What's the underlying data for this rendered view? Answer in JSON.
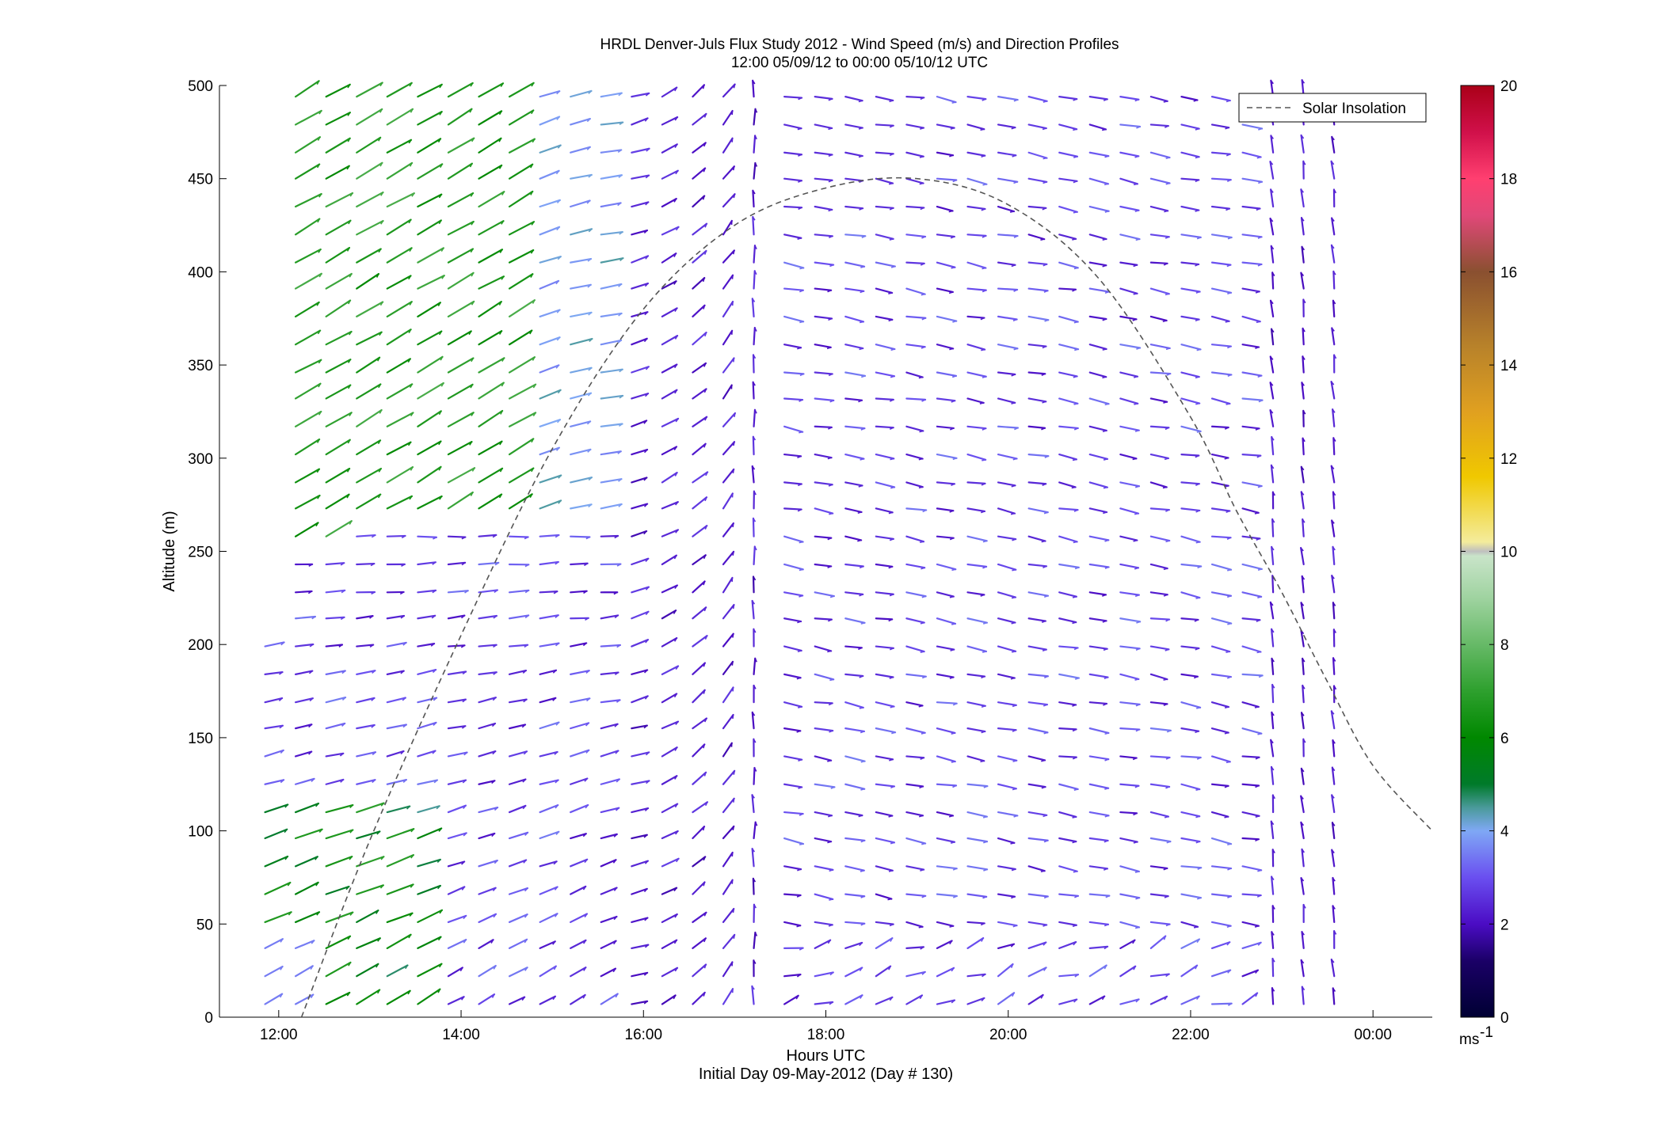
{
  "chart_data": {
    "type": "wind-barb-profile",
    "title": "HRDL Denver-Juls Flux Study 2012 - Wind Speed (m/s) and Direction Profiles",
    "subtitle": "12:00 05/09/12 to 00:00 05/10/12  UTC",
    "xlabel": "Hours UTC",
    "xlabel2": "Initial Day 09-May-2012 (Day # 130)",
    "ylabel": "Altitude (m)",
    "xlim": [
      11.35,
      24.65
    ],
    "ylim": [
      0,
      500
    ],
    "x_ticks": [
      12,
      14,
      16,
      18,
      20,
      22,
      24
    ],
    "x_tick_labels": [
      "12:00",
      "14:00",
      "16:00",
      "18:00",
      "20:00",
      "22:00",
      "00:00"
    ],
    "y_ticks": [
      0,
      50,
      100,
      150,
      200,
      250,
      300,
      350,
      400,
      450,
      500
    ],
    "colorbar": {
      "range": [
        0,
        20
      ],
      "ticks": [
        0,
        2,
        4,
        6,
        8,
        10,
        12,
        14,
        16,
        18,
        20
      ],
      "unit_label": "ms",
      "unit_superscript": "-1"
    },
    "legend": {
      "entries": [
        "Solar Insolation"
      ],
      "location": "top-right"
    },
    "solar_insolation": {
      "style": "dashed",
      "color": "#555555",
      "points": [
        [
          12.25,
          0
        ],
        [
          13.0,
          95
        ],
        [
          14.0,
          205
        ],
        [
          15.0,
          305
        ],
        [
          16.0,
          380
        ],
        [
          17.0,
          425
        ],
        [
          18.0,
          445
        ],
        [
          19.0,
          450
        ],
        [
          20.0,
          436
        ],
        [
          21.0,
          396
        ],
        [
          22.0,
          322
        ],
        [
          22.5,
          272
        ],
        [
          23.0,
          228
        ],
        [
          23.5,
          180
        ],
        [
          24.0,
          135
        ],
        [
          24.65,
          100
        ]
      ]
    },
    "altitudes": [
      7,
      22,
      37,
      51,
      66,
      81,
      96,
      110,
      125,
      140,
      155,
      169,
      184,
      199,
      214,
      228,
      243,
      258,
      273,
      287,
      302,
      317,
      332,
      346,
      361,
      376,
      391,
      405,
      420,
      435,
      450,
      464,
      479,
      494
    ],
    "vector_regimes": [
      {
        "time": "11:40-12:30",
        "low_alt": "weak SW-W flow, 2-4 m/s",
        "high_alt": "SW flow 6-8 m/s"
      },
      {
        "time": "12:30-15:40",
        "low_alt": "W flow 2-4 m/s",
        "high_alt": "SW flow 6-8 m/s"
      },
      {
        "time": "15:40-17:30",
        "all_alt": "winds veering to northerly, 1-3 m/s"
      },
      {
        "time": "17:30-22:30",
        "all_alt": "E-SE flow 2-3 m/s"
      },
      {
        "time": "22:30-23:45",
        "all_alt": "northerly/southerly flow 1-2 m/s"
      }
    ]
  }
}
